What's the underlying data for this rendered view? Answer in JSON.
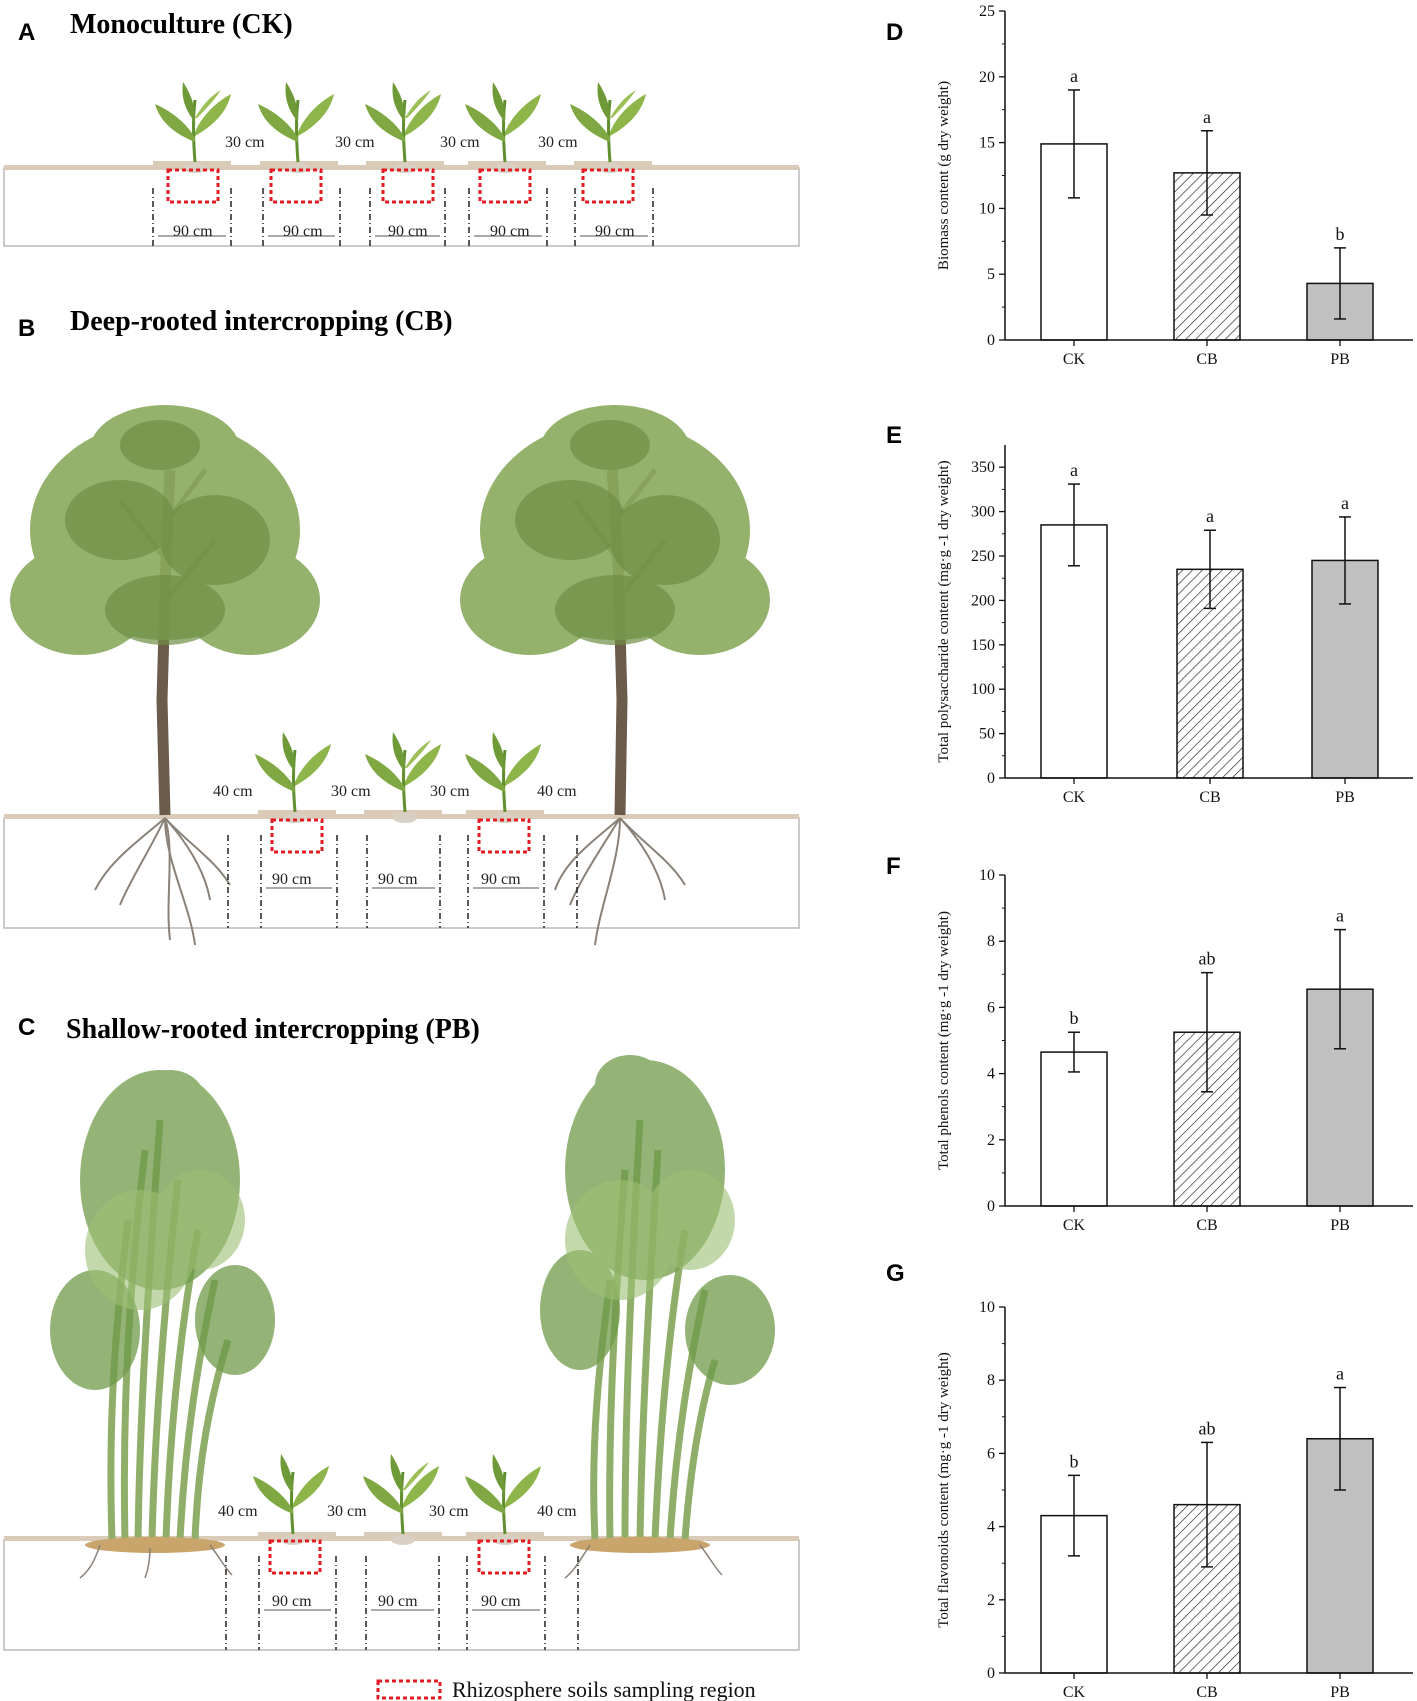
{
  "diagram": {
    "legend": "Rhizosphere soils sampling region",
    "colors": {
      "soil_line": "#d9cbb7",
      "sampling_box": "#e31b23",
      "leaf": "#7fa842",
      "tree_canopy": "#7f9e55",
      "trunk": "#6b5b4b",
      "root": "#8a8178",
      "bamboo": "#8fae69"
    },
    "panels": [
      {
        "letter": "A",
        "title": "Monoculture (CK)",
        "spacing_labels": [
          "30 cm",
          "30 cm",
          "30 cm",
          "30 cm"
        ],
        "width_labels": [
          "90 cm",
          "90 cm",
          "90 cm",
          "90 cm",
          "90 cm"
        ]
      },
      {
        "letter": "B",
        "title": "Deep-rooted intercropping (CB)",
        "spacing_labels": [
          "40 cm",
          "30 cm",
          "30 cm",
          "40 cm"
        ],
        "width_labels": [
          "90 cm",
          "90 cm",
          "90 cm"
        ]
      },
      {
        "letter": "C",
        "title": "Shallow-rooted intercropping (PB)",
        "spacing_labels": [
          "40 cm",
          "30 cm",
          "30 cm",
          "40 cm"
        ],
        "width_labels": [
          "90 cm",
          "90 cm",
          "90 cm"
        ]
      }
    ]
  },
  "chart_data": [
    {
      "panel": "D",
      "type": "bar",
      "categories": [
        "CK",
        "CB",
        "PB"
      ],
      "values": [
        14.9,
        12.7,
        4.3
      ],
      "errors": [
        4.1,
        3.2,
        2.7
      ],
      "significance": [
        "a",
        "a",
        "b"
      ],
      "ylabel": "Biomass content (g dry weight)",
      "ylim": [
        0,
        25
      ],
      "yticks": [
        0,
        5,
        10,
        15,
        20,
        25
      ],
      "fills": [
        "white",
        "hatch",
        "#c0c0c0"
      ]
    },
    {
      "panel": "E",
      "type": "bar",
      "categories": [
        "CK",
        "CB",
        "PB"
      ],
      "values": [
        285,
        235,
        245
      ],
      "errors": [
        46,
        44,
        49
      ],
      "significance": [
        "a",
        "a",
        "a"
      ],
      "ylabel": "Total polysaccharide content (mg·g -1 dry weight)",
      "ylim": [
        0,
        375
      ],
      "yticks": [
        0,
        50,
        100,
        150,
        200,
        250,
        300,
        350
      ],
      "fills": [
        "white",
        "hatch",
        "#c0c0c0"
      ]
    },
    {
      "panel": "F",
      "type": "bar",
      "categories": [
        "CK",
        "CB",
        "PB"
      ],
      "values": [
        4.65,
        5.25,
        6.55
      ],
      "errors": [
        0.6,
        1.8,
        1.8
      ],
      "significance": [
        "b",
        "ab",
        "a"
      ],
      "ylabel": "Total phenols content (mg·g -1 dry weight)",
      "ylim": [
        0,
        10
      ],
      "yticks": [
        0,
        2,
        4,
        6,
        8,
        10
      ],
      "fills": [
        "white",
        "hatch",
        "#c0c0c0"
      ]
    },
    {
      "panel": "G",
      "type": "bar",
      "categories": [
        "CK",
        "CB",
        "PB"
      ],
      "values": [
        4.3,
        4.6,
        6.4
      ],
      "errors": [
        1.1,
        1.7,
        1.4
      ],
      "significance": [
        "b",
        "ab",
        "a"
      ],
      "ylabel": "Total flavonoids content (mg·g -1 dry weight)",
      "ylim": [
        0,
        10
      ],
      "yticks": [
        0,
        2,
        4,
        6,
        8,
        10
      ],
      "fills": [
        "white",
        "hatch",
        "#c0c0c0"
      ]
    }
  ]
}
